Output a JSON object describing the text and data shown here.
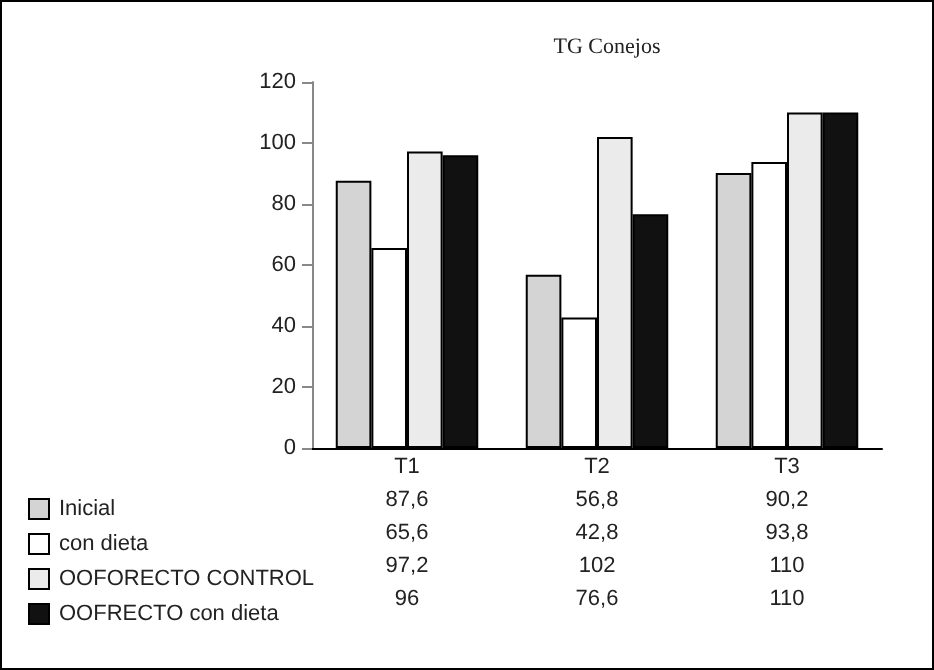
{
  "chart_data": {
    "type": "bar",
    "title": "TG Conejos",
    "categories": [
      "T1",
      "T2",
      "T3"
    ],
    "series": [
      {
        "name": "Inicial",
        "color": "#d4d4d4",
        "values": [
          87.6,
          56.8,
          90.2
        ],
        "value_labels": [
          "87,6",
          "56,8",
          "90,2"
        ]
      },
      {
        "name": "con dieta",
        "color": "#ffffff",
        "values": [
          65.6,
          42.8,
          93.8
        ],
        "value_labels": [
          "65,6",
          "42,8",
          "93,8"
        ]
      },
      {
        "name": "OOFORECTO CONTROL",
        "color": "#ebebeb",
        "values": [
          97.2,
          102,
          110
        ],
        "value_labels": [
          "97,2",
          "102",
          "110"
        ]
      },
      {
        "name": "OOFRECTO con dieta",
        "color": "#111111",
        "values": [
          96,
          76.6,
          110
        ],
        "value_labels": [
          "96",
          "76,6",
          "110"
        ]
      }
    ],
    "ylim": [
      0,
      120
    ],
    "yticks": [
      0,
      20,
      40,
      60,
      80,
      100,
      120
    ],
    "grid": false,
    "legend": "bottom left"
  }
}
